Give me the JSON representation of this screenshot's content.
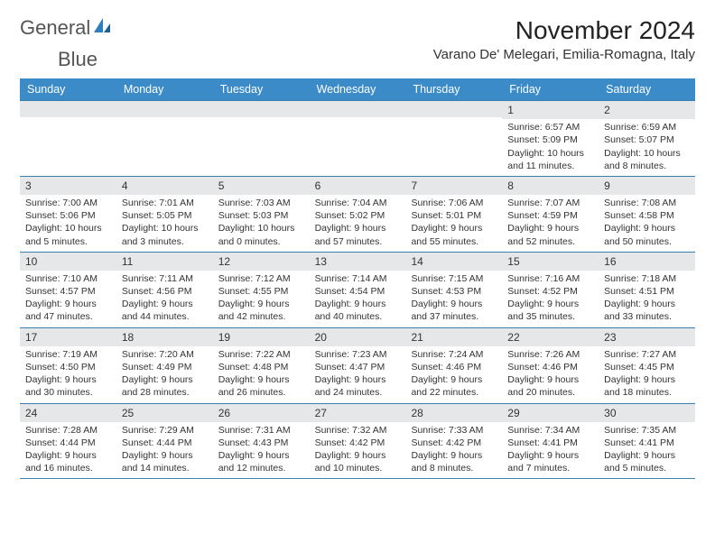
{
  "logo": {
    "text_general": "General",
    "text_blue": "Blue"
  },
  "title": "November 2024",
  "location": "Varano De' Melegari, Emilia-Romagna, Italy",
  "colors": {
    "header_bg": "#3b8bc9",
    "header_text": "#ffffff",
    "daynum_bg": "#e6e7e8",
    "border": "#3b7fb0",
    "text": "#333333",
    "logo_gray": "#555555",
    "logo_blue": "#2d7fc1"
  },
  "fonts": {
    "title_size_pt": 21,
    "location_size_pt": 11,
    "header_size_pt": 9,
    "cell_size_pt": 8,
    "daynum_size_pt": 9
  },
  "day_names": [
    "Sunday",
    "Monday",
    "Tuesday",
    "Wednesday",
    "Thursday",
    "Friday",
    "Saturday"
  ],
  "weeks": [
    [
      {
        "num": "",
        "lines": []
      },
      {
        "num": "",
        "lines": []
      },
      {
        "num": "",
        "lines": []
      },
      {
        "num": "",
        "lines": []
      },
      {
        "num": "",
        "lines": []
      },
      {
        "num": "1",
        "lines": [
          "Sunrise: 6:57 AM",
          "Sunset: 5:09 PM",
          "Daylight: 10 hours and 11 minutes."
        ]
      },
      {
        "num": "2",
        "lines": [
          "Sunrise: 6:59 AM",
          "Sunset: 5:07 PM",
          "Daylight: 10 hours and 8 minutes."
        ]
      }
    ],
    [
      {
        "num": "3",
        "lines": [
          "Sunrise: 7:00 AM",
          "Sunset: 5:06 PM",
          "Daylight: 10 hours and 5 minutes."
        ]
      },
      {
        "num": "4",
        "lines": [
          "Sunrise: 7:01 AM",
          "Sunset: 5:05 PM",
          "Daylight: 10 hours and 3 minutes."
        ]
      },
      {
        "num": "5",
        "lines": [
          "Sunrise: 7:03 AM",
          "Sunset: 5:03 PM",
          "Daylight: 10 hours and 0 minutes."
        ]
      },
      {
        "num": "6",
        "lines": [
          "Sunrise: 7:04 AM",
          "Sunset: 5:02 PM",
          "Daylight: 9 hours and 57 minutes."
        ]
      },
      {
        "num": "7",
        "lines": [
          "Sunrise: 7:06 AM",
          "Sunset: 5:01 PM",
          "Daylight: 9 hours and 55 minutes."
        ]
      },
      {
        "num": "8",
        "lines": [
          "Sunrise: 7:07 AM",
          "Sunset: 4:59 PM",
          "Daylight: 9 hours and 52 minutes."
        ]
      },
      {
        "num": "9",
        "lines": [
          "Sunrise: 7:08 AM",
          "Sunset: 4:58 PM",
          "Daylight: 9 hours and 50 minutes."
        ]
      }
    ],
    [
      {
        "num": "10",
        "lines": [
          "Sunrise: 7:10 AM",
          "Sunset: 4:57 PM",
          "Daylight: 9 hours and 47 minutes."
        ]
      },
      {
        "num": "11",
        "lines": [
          "Sunrise: 7:11 AM",
          "Sunset: 4:56 PM",
          "Daylight: 9 hours and 44 minutes."
        ]
      },
      {
        "num": "12",
        "lines": [
          "Sunrise: 7:12 AM",
          "Sunset: 4:55 PM",
          "Daylight: 9 hours and 42 minutes."
        ]
      },
      {
        "num": "13",
        "lines": [
          "Sunrise: 7:14 AM",
          "Sunset: 4:54 PM",
          "Daylight: 9 hours and 40 minutes."
        ]
      },
      {
        "num": "14",
        "lines": [
          "Sunrise: 7:15 AM",
          "Sunset: 4:53 PM",
          "Daylight: 9 hours and 37 minutes."
        ]
      },
      {
        "num": "15",
        "lines": [
          "Sunrise: 7:16 AM",
          "Sunset: 4:52 PM",
          "Daylight: 9 hours and 35 minutes."
        ]
      },
      {
        "num": "16",
        "lines": [
          "Sunrise: 7:18 AM",
          "Sunset: 4:51 PM",
          "Daylight: 9 hours and 33 minutes."
        ]
      }
    ],
    [
      {
        "num": "17",
        "lines": [
          "Sunrise: 7:19 AM",
          "Sunset: 4:50 PM",
          "Daylight: 9 hours and 30 minutes."
        ]
      },
      {
        "num": "18",
        "lines": [
          "Sunrise: 7:20 AM",
          "Sunset: 4:49 PM",
          "Daylight: 9 hours and 28 minutes."
        ]
      },
      {
        "num": "19",
        "lines": [
          "Sunrise: 7:22 AM",
          "Sunset: 4:48 PM",
          "Daylight: 9 hours and 26 minutes."
        ]
      },
      {
        "num": "20",
        "lines": [
          "Sunrise: 7:23 AM",
          "Sunset: 4:47 PM",
          "Daylight: 9 hours and 24 minutes."
        ]
      },
      {
        "num": "21",
        "lines": [
          "Sunrise: 7:24 AM",
          "Sunset: 4:46 PM",
          "Daylight: 9 hours and 22 minutes."
        ]
      },
      {
        "num": "22",
        "lines": [
          "Sunrise: 7:26 AM",
          "Sunset: 4:46 PM",
          "Daylight: 9 hours and 20 minutes."
        ]
      },
      {
        "num": "23",
        "lines": [
          "Sunrise: 7:27 AM",
          "Sunset: 4:45 PM",
          "Daylight: 9 hours and 18 minutes."
        ]
      }
    ],
    [
      {
        "num": "24",
        "lines": [
          "Sunrise: 7:28 AM",
          "Sunset: 4:44 PM",
          "Daylight: 9 hours and 16 minutes."
        ]
      },
      {
        "num": "25",
        "lines": [
          "Sunrise: 7:29 AM",
          "Sunset: 4:44 PM",
          "Daylight: 9 hours and 14 minutes."
        ]
      },
      {
        "num": "26",
        "lines": [
          "Sunrise: 7:31 AM",
          "Sunset: 4:43 PM",
          "Daylight: 9 hours and 12 minutes."
        ]
      },
      {
        "num": "27",
        "lines": [
          "Sunrise: 7:32 AM",
          "Sunset: 4:42 PM",
          "Daylight: 9 hours and 10 minutes."
        ]
      },
      {
        "num": "28",
        "lines": [
          "Sunrise: 7:33 AM",
          "Sunset: 4:42 PM",
          "Daylight: 9 hours and 8 minutes."
        ]
      },
      {
        "num": "29",
        "lines": [
          "Sunrise: 7:34 AM",
          "Sunset: 4:41 PM",
          "Daylight: 9 hours and 7 minutes."
        ]
      },
      {
        "num": "30",
        "lines": [
          "Sunrise: 7:35 AM",
          "Sunset: 4:41 PM",
          "Daylight: 9 hours and 5 minutes."
        ]
      }
    ]
  ]
}
